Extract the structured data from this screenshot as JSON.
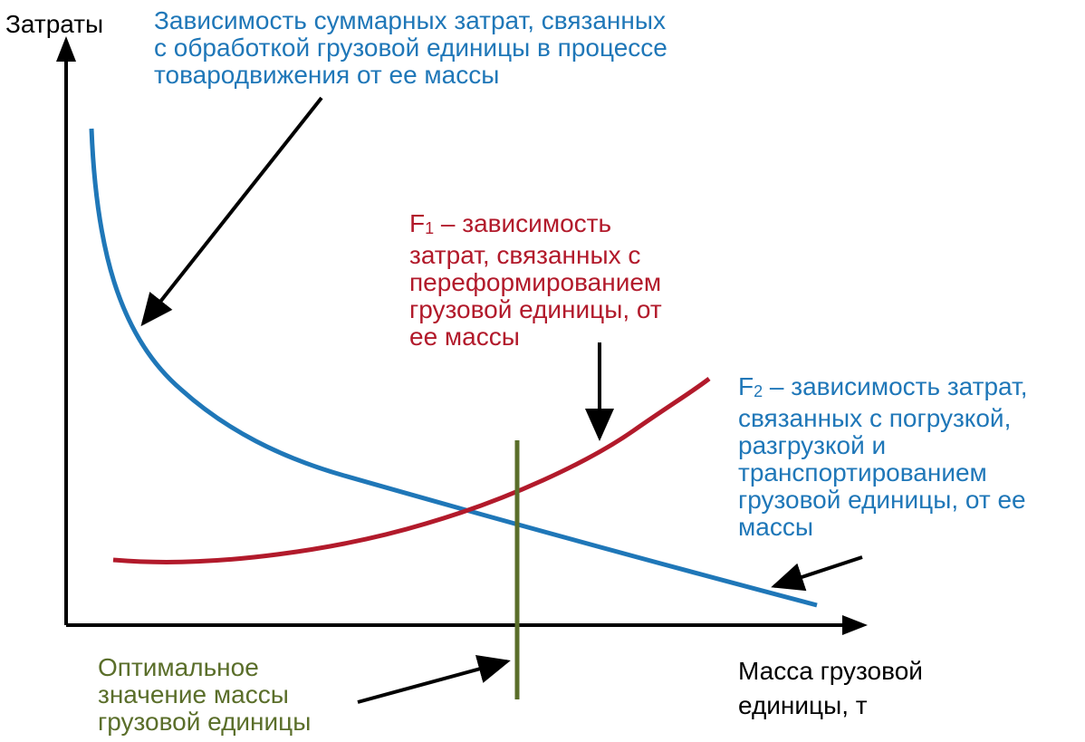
{
  "axes": {
    "y_label": "Затраты",
    "x_label_line1": "Масса грузовой",
    "x_label_line2": "единицы, т"
  },
  "total_curve_label": [
    "Зависимость суммарных затрат, связанных",
    "с обработкой грузовой единицы в процессе",
    "товародвижения от ее массы"
  ],
  "f1_label": {
    "symbol": "F",
    "subscript": "1",
    "line1_rest": " – зависимость",
    "lines": [
      "затрат, связанных с",
      "переформированием",
      "грузовой единицы, от",
      "ее массы"
    ]
  },
  "f2_label": {
    "symbol": "F",
    "subscript": "2",
    "line1_rest": " – зависимость затрат,",
    "lines": [
      "связанных с погрузкой,",
      "разгрузкой и",
      "транспортированием",
      "грузовой единицы, от ее",
      "массы"
    ]
  },
  "optimum_label": [
    "Оптимальное",
    "значение массы",
    "грузовой единицы"
  ],
  "colors": {
    "total_curve": "#1f77b8",
    "f1_curve": "#b21a2b",
    "optimum_line": "#5a6e2a",
    "axes": "#000000"
  }
}
